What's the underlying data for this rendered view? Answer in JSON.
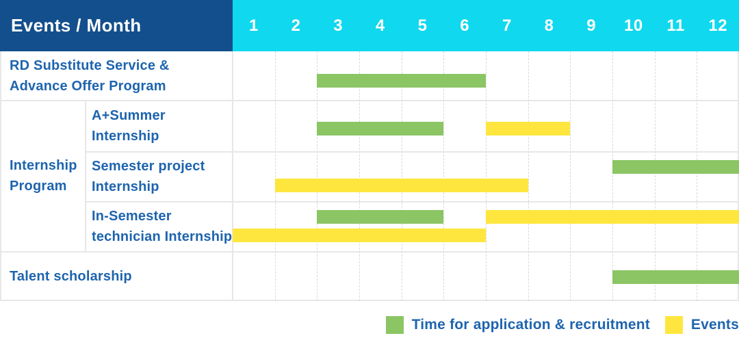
{
  "header": {
    "events_month_label": "Events / Month",
    "months": [
      "1",
      "2",
      "3",
      "4",
      "5",
      "6",
      "7",
      "8",
      "9",
      "10",
      "11",
      "12"
    ]
  },
  "colors": {
    "navy_header": "#134F8C",
    "cyan_header": "#10D8EE",
    "green": "#8BC564",
    "yellow": "#FFE63F",
    "label_blue": "#1D64AE",
    "grid_line": "#E7E7E7",
    "grid_dashed": "#D8D8D8"
  },
  "chart_data": {
    "type": "bar",
    "subtype": "gantt",
    "title": "Events / Month",
    "xlabel": "Month",
    "x_ticks": [
      1,
      2,
      3,
      4,
      5,
      6,
      7,
      8,
      9,
      10,
      11,
      12
    ],
    "x_range": [
      1,
      12
    ],
    "grid": "dashed-vertical",
    "legend_position": "bottom-right",
    "group": {
      "label": "Internship Program",
      "label_lines": [
        "Internship",
        "Program"
      ]
    },
    "rows": [
      {
        "label": "RD Substitute Service & Advance Offer Program",
        "label_lines": [
          "RD Substitute Service &",
          "Advance Offer Program"
        ],
        "grouped": false,
        "bars": [
          {
            "series": "Time for application & recruitment",
            "color_key": "green",
            "start_month": 3,
            "end_month": 6,
            "band": "single"
          }
        ]
      },
      {
        "label": "A+Summer Internship",
        "label_lines": [
          "A+Summer",
          "Internship"
        ],
        "grouped": true,
        "bars": [
          {
            "series": "Time for application & recruitment",
            "color_key": "green",
            "start_month": 3,
            "end_month": 5,
            "band": "single"
          },
          {
            "series": "Events",
            "color_key": "yellow",
            "start_month": 7,
            "end_month": 8,
            "band": "single"
          }
        ]
      },
      {
        "label": "Semester project Internship",
        "label_lines": [
          "Semester project",
          "Internship"
        ],
        "grouped": true,
        "bars": [
          {
            "series": "Time for application & recruitment",
            "color_key": "green",
            "start_month": 10,
            "end_month": 12,
            "band": "top"
          },
          {
            "series": "Events",
            "color_key": "yellow",
            "start_month": 2,
            "end_month": 7,
            "band": "bottom"
          }
        ]
      },
      {
        "label": "In-Semester technician Internship",
        "label_lines": [
          "In-Semester",
          "technician Internship"
        ],
        "grouped": true,
        "bars": [
          {
            "series": "Time for application & recruitment",
            "color_key": "green",
            "start_month": 3,
            "end_month": 5,
            "band": "top"
          },
          {
            "series": "Events",
            "color_key": "yellow",
            "start_month": 7,
            "end_month": 12,
            "band": "top"
          },
          {
            "series": "Events",
            "color_key": "yellow",
            "start_month": 1,
            "end_month": 6,
            "band": "bottom"
          }
        ]
      },
      {
        "label": "Talent scholarship",
        "label_lines": [
          "Talent scholarship"
        ],
        "grouped": false,
        "bars": [
          {
            "series": "Time for application & recruitment",
            "color_key": "green",
            "start_month": 10,
            "end_month": 12,
            "band": "single"
          }
        ]
      }
    ],
    "legend": [
      {
        "label": "Time for application & recruitment",
        "color_key": "green"
      },
      {
        "label": "Events",
        "color_key": "yellow"
      }
    ]
  }
}
